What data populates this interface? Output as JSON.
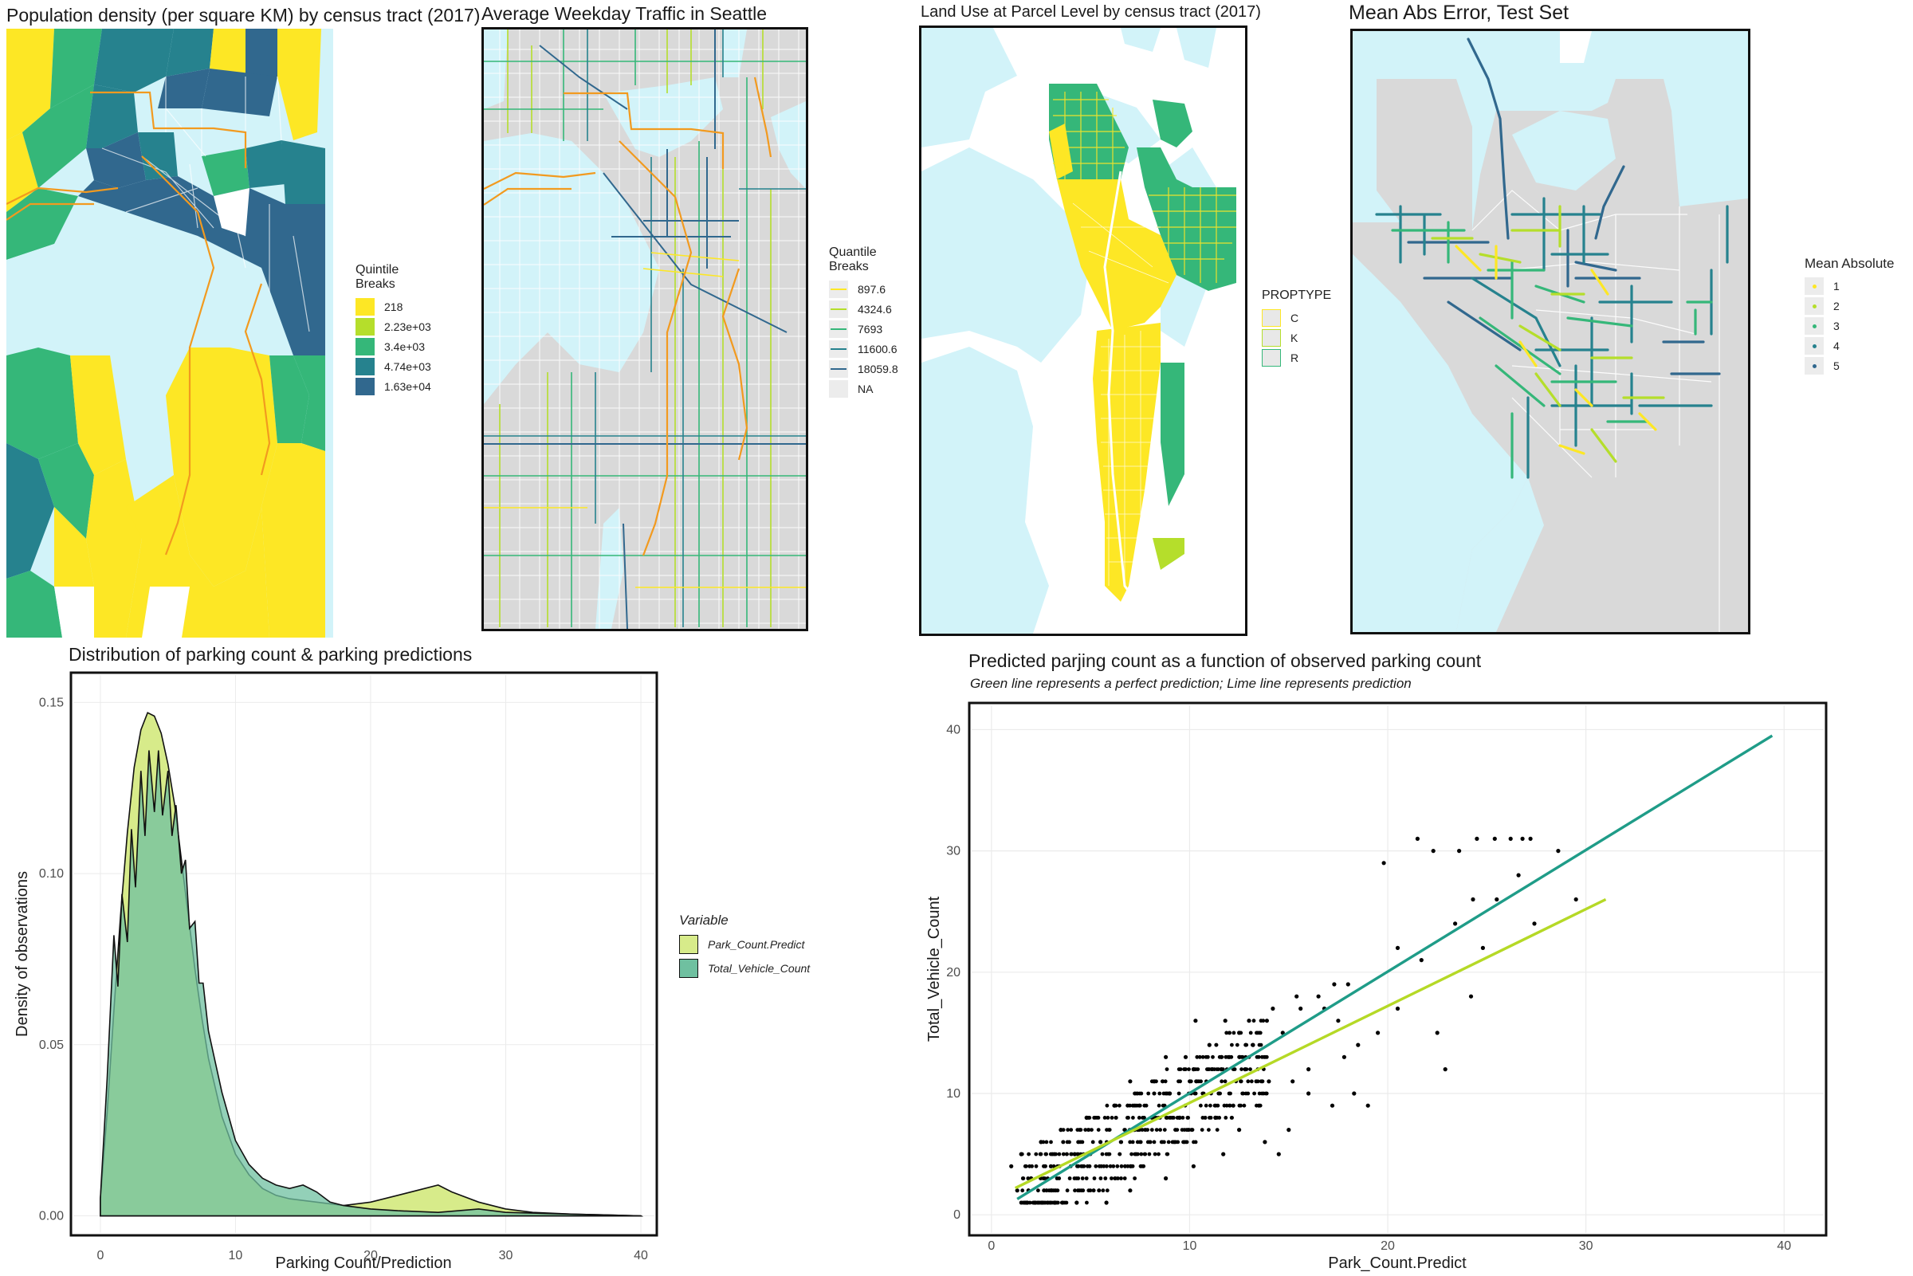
{
  "colors": {
    "water": "#d2f3f9",
    "land_gray": "#d9d9d9",
    "route_orange": "#f29a1f",
    "yellow": "#fde725",
    "lime": "#b5de2b",
    "green": "#35b779",
    "teal": "#26828e",
    "blue": "#31688e",
    "density_predict_fill": "#d7eb8a",
    "density_observed_fill": "#6fc0a0",
    "line_perfect": "#1f9c88",
    "line_prediction": "#b5d926"
  },
  "maps": {
    "population": {
      "title": "Population density (per square KM) by census tract (2017)",
      "legend_title": "Quintile\nBreaks",
      "legend": [
        {
          "label": "218",
          "color": "#fde725"
        },
        {
          "label": "2.23e+03",
          "color": "#b5de2b"
        },
        {
          "label": "3.4e+03",
          "color": "#35b779"
        },
        {
          "label": "4.74e+03",
          "color": "#26828e"
        },
        {
          "label": "1.63e+04",
          "color": "#31688e"
        }
      ]
    },
    "traffic": {
      "title": "Average Weekday Traffic in Seattle",
      "legend_title": "Quantile\nBreaks",
      "legend": [
        {
          "label": "897.6",
          "color": "#fde725"
        },
        {
          "label": "4324.6",
          "color": "#b5de2b"
        },
        {
          "label": "7693",
          "color": "#35b779"
        },
        {
          "label": "11600.6",
          "color": "#26828e"
        },
        {
          "label": "18059.8",
          "color": "#31688e"
        },
        {
          "label": "NA",
          "color": "#ececec"
        }
      ]
    },
    "landuse": {
      "title": "Land Use at Parcel Level by census tract (2017)",
      "legend_title": "PROPTYPE",
      "legend": [
        {
          "label": "C",
          "color": "#fde725"
        },
        {
          "label": "K",
          "color": "#b5de2b"
        },
        {
          "label": "R",
          "color": "#35b779"
        }
      ]
    },
    "mae": {
      "title": "Mean Abs Error, Test Set",
      "legend_title": "Mean Absolute",
      "legend": [
        {
          "label": "1",
          "color": "#fde725"
        },
        {
          "label": "2",
          "color": "#b5de2b"
        },
        {
          "label": "3",
          "color": "#35b779"
        },
        {
          "label": "4",
          "color": "#26828e"
        },
        {
          "label": "5",
          "color": "#31688e"
        }
      ]
    }
  },
  "chart_data": [
    {
      "type": "area",
      "title": "Distribution of parking count & parking predictions",
      "xlabel": "Parking Count/Prediction",
      "ylabel": "Density of observations",
      "xlim": [
        -2,
        41
      ],
      "ylim": [
        -0.005,
        0.158
      ],
      "x_ticks": [
        0,
        10,
        20,
        30,
        40
      ],
      "y_ticks": [
        0.0,
        0.05,
        0.1,
        0.15
      ],
      "y_tick_labels": [
        "0.00",
        "0.05",
        "0.10",
        "0.15"
      ],
      "grid": true,
      "legend_title": "Variable",
      "legend_position": "right",
      "series": [
        {
          "name": "Park_Count.Predict",
          "color": "#d7eb8a",
          "x": [
            0,
            0.5,
            1,
            1.5,
            2,
            2.5,
            3,
            3.5,
            4,
            4.5,
            5,
            5.5,
            6,
            6.5,
            7,
            7.5,
            8,
            9,
            10,
            11,
            12,
            13,
            14,
            16,
            18,
            20,
            22,
            24,
            25,
            26,
            28,
            30,
            32,
            35,
            40
          ],
          "y": [
            0.005,
            0.03,
            0.06,
            0.088,
            0.112,
            0.131,
            0.142,
            0.147,
            0.146,
            0.141,
            0.132,
            0.12,
            0.104,
            0.088,
            0.072,
            0.058,
            0.046,
            0.029,
            0.018,
            0.012,
            0.008,
            0.006,
            0.005,
            0.004,
            0.003,
            0.004,
            0.006,
            0.008,
            0.009,
            0.007,
            0.004,
            0.002,
            0.001,
            0.0005,
            0.0
          ]
        },
        {
          "name": "Total_Vehicle_Count",
          "color": "#6fc0a0",
          "x": [
            0,
            0.5,
            1,
            1.3,
            1.6,
            2,
            2.3,
            2.6,
            3,
            3.3,
            3.6,
            4,
            4.3,
            4.6,
            5,
            5.3,
            5.6,
            6,
            6.3,
            6.6,
            7,
            7.3,
            7.6,
            8,
            8.5,
            9,
            9.5,
            10,
            11,
            12,
            13,
            14,
            15,
            16,
            17,
            18,
            20,
            22,
            25,
            28,
            30,
            35,
            40
          ],
          "y": [
            0.005,
            0.04,
            0.082,
            0.067,
            0.094,
            0.08,
            0.113,
            0.096,
            0.13,
            0.111,
            0.136,
            0.118,
            0.136,
            0.117,
            0.13,
            0.111,
            0.12,
            0.1,
            0.104,
            0.084,
            0.086,
            0.068,
            0.068,
            0.054,
            0.045,
            0.036,
            0.029,
            0.022,
            0.015,
            0.011,
            0.009,
            0.008,
            0.009,
            0.007,
            0.004,
            0.003,
            0.002,
            0.0015,
            0.001,
            0.002,
            0.001,
            0.0005,
            0.0
          ]
        }
      ]
    },
    {
      "type": "scatter",
      "title": "Predicted parjing count as a function of observed parking count",
      "subtitle": "Green line represents a perfect prediction; Lime line represents prediction",
      "xlabel": "Park_Count.Predict",
      "ylabel": "Total_Vehicle_Count",
      "xlim": [
        -1,
        42
      ],
      "ylim": [
        -1.5,
        42
      ],
      "x_ticks": [
        0,
        10,
        20,
        30,
        40
      ],
      "y_ticks": [
        0,
        10,
        20,
        30,
        40
      ],
      "grid": true,
      "points": [
        [
          19.8,
          29
        ],
        [
          21.5,
          31
        ],
        [
          22.3,
          30
        ],
        [
          23.6,
          30
        ],
        [
          24.5,
          31
        ],
        [
          25.4,
          31
        ],
        [
          26.2,
          31
        ],
        [
          26.8,
          31
        ],
        [
          27.2,
          31
        ],
        [
          28.6,
          30
        ],
        [
          29.5,
          26
        ],
        [
          24.3,
          26
        ],
        [
          25.5,
          26
        ],
        [
          26.6,
          28
        ],
        [
          27.4,
          24
        ],
        [
          23.4,
          24
        ],
        [
          24.8,
          22
        ],
        [
          24.2,
          18
        ],
        [
          22.5,
          15
        ],
        [
          22.9,
          12
        ],
        [
          21.7,
          21
        ],
        [
          20.5,
          22
        ],
        [
          17.3,
          19
        ],
        [
          18.0,
          19
        ],
        [
          16.5,
          18
        ],
        [
          15.4,
          18
        ],
        [
          14.2,
          17
        ],
        [
          13.9,
          16
        ],
        [
          13.0,
          16
        ],
        [
          12.5,
          15
        ],
        [
          11.8,
          16
        ],
        [
          10.3,
          16
        ],
        [
          15.6,
          17
        ],
        [
          16.8,
          17
        ],
        [
          17.5,
          16
        ],
        [
          14.7,
          15
        ],
        [
          13.2,
          14
        ],
        [
          12.0,
          13
        ],
        [
          11.0,
          14
        ],
        [
          9.8,
          13
        ],
        [
          8.8,
          13
        ],
        [
          10.2,
          12
        ],
        [
          11.6,
          12
        ],
        [
          12.8,
          12
        ],
        [
          14.0,
          11
        ],
        [
          15.2,
          11
        ],
        [
          16.0,
          10
        ],
        [
          17.2,
          9
        ],
        [
          18.3,
          10
        ],
        [
          19.0,
          9
        ],
        [
          13.5,
          9
        ],
        [
          12.2,
          9
        ],
        [
          11.3,
          8
        ],
        [
          9.5,
          8
        ],
        [
          7.2,
          7
        ],
        [
          5.5,
          6
        ],
        [
          4.2,
          5
        ],
        [
          3.0,
          4
        ],
        [
          2.0,
          3
        ],
        [
          1.3,
          2
        ],
        [
          1.0,
          4
        ],
        [
          1.5,
          5
        ],
        [
          2.5,
          6
        ],
        [
          3.5,
          7
        ],
        [
          4.8,
          8
        ],
        [
          6.2,
          9
        ],
        [
          7.0,
          11
        ],
        [
          8.2,
          11
        ],
        [
          9.0,
          10
        ],
        [
          12.5,
          7
        ],
        [
          13.8,
          6
        ],
        [
          14.5,
          5
        ],
        [
          15.0,
          7
        ],
        [
          11.7,
          5
        ],
        [
          10.2,
          4
        ],
        [
          8.8,
          3
        ],
        [
          7.0,
          2
        ],
        [
          5.8,
          1
        ],
        [
          4.3,
          1
        ],
        [
          3.2,
          1
        ],
        [
          2.2,
          1
        ],
        [
          1.8,
          1
        ],
        [
          16.0,
          12
        ],
        [
          18.5,
          14
        ],
        [
          19.5,
          15
        ],
        [
          20.5,
          17
        ],
        [
          17.8,
          13
        ]
      ],
      "point_cloud": {
        "x_range": [
          1.5,
          15
        ],
        "y_range": [
          1,
          16
        ],
        "note": "dense band"
      },
      "lines": [
        {
          "name": "perfect",
          "color": "#1f9c88",
          "from": [
            1.3,
            1.3
          ],
          "to": [
            39.4,
            39.5
          ]
        },
        {
          "name": "prediction",
          "color": "#b5d926",
          "from": [
            1.2,
            2.2
          ],
          "to": [
            31.0,
            26.0
          ]
        }
      ]
    }
  ]
}
